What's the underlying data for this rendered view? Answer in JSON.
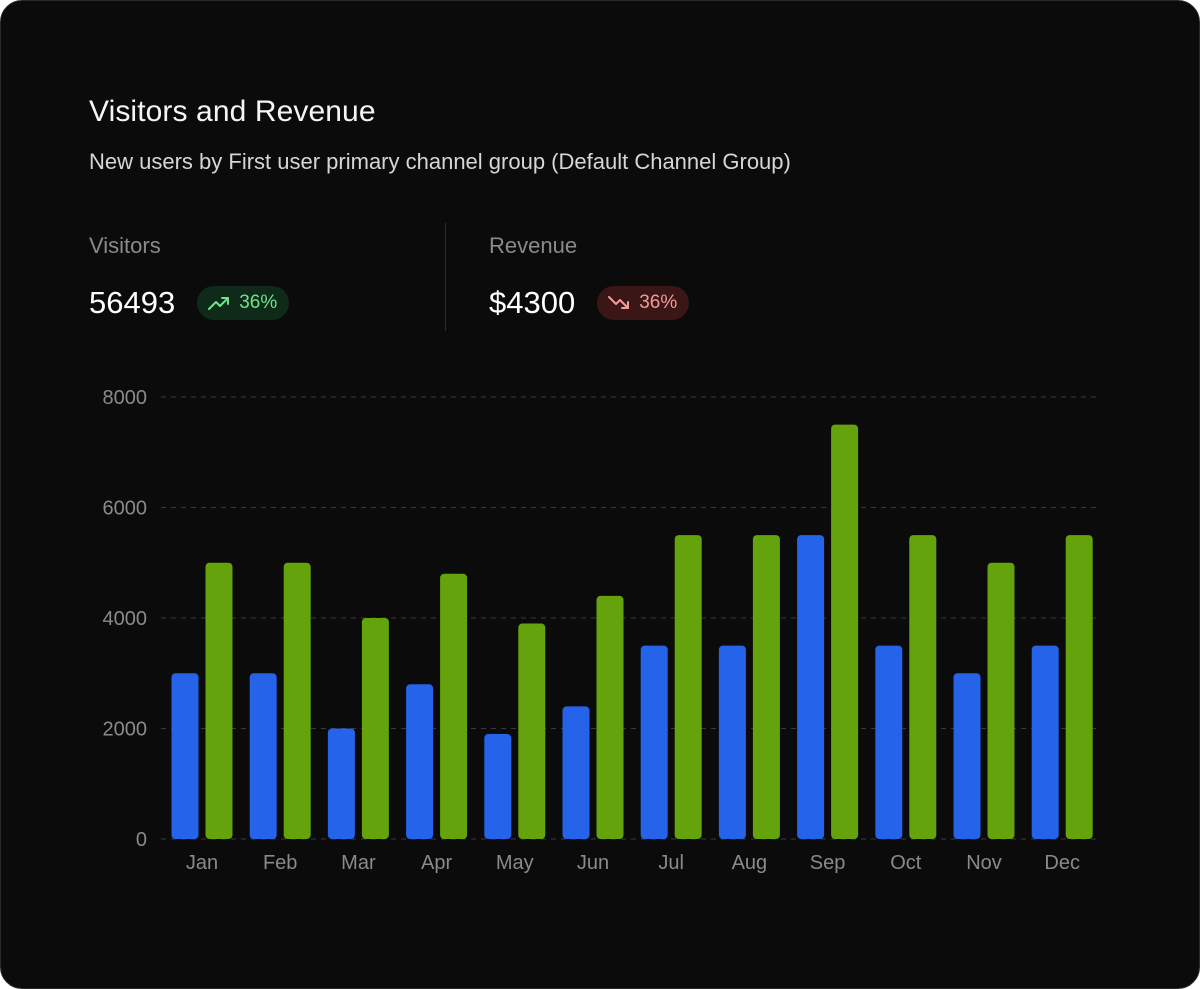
{
  "card": {
    "title": "Visitors and Revenue",
    "subtitle": "New users by First user primary channel group (Default Channel Group)"
  },
  "metrics": {
    "visitors": {
      "label": "Visitors",
      "value": "56493",
      "change": "36%",
      "trend": "up",
      "trend_icon": "trending-up-icon"
    },
    "revenue": {
      "label": "Revenue",
      "value": "$4300",
      "change": "36%",
      "trend": "down",
      "trend_icon": "trending-down-icon"
    }
  },
  "colors": {
    "background": "#0b0b0b",
    "series_a": "#2563eb",
    "series_b": "#65a30d",
    "grid": "#3a3a3a",
    "axis_text": "#8a8a8a",
    "badge_up_bg": "#0f2a18",
    "badge_up_text": "#6ee38b",
    "badge_down_bg": "#3a1616",
    "badge_down_text": "#f59a9a"
  },
  "chart_data": {
    "type": "bar",
    "categories": [
      "Jan",
      "Feb",
      "Mar",
      "Apr",
      "May",
      "Jun",
      "Jul",
      "Aug",
      "Sep",
      "Oct",
      "Nov",
      "Dec"
    ],
    "series": [
      {
        "values": [
          3000,
          3000,
          2000,
          2800,
          1900,
          2400,
          3500,
          3500,
          5500,
          3500,
          3000,
          3500
        ],
        "color": "#2563eb"
      },
      {
        "values": [
          5000,
          5000,
          4000,
          4800,
          3900,
          4400,
          5500,
          5500,
          7500,
          5500,
          5000,
          5500
        ],
        "color": "#65a30d"
      }
    ],
    "yticks": [
      0,
      2000,
      4000,
      6000,
      8000
    ],
    "ylim": [
      0,
      8000
    ],
    "grid": true,
    "grid_style": "dashed",
    "legend": false
  }
}
